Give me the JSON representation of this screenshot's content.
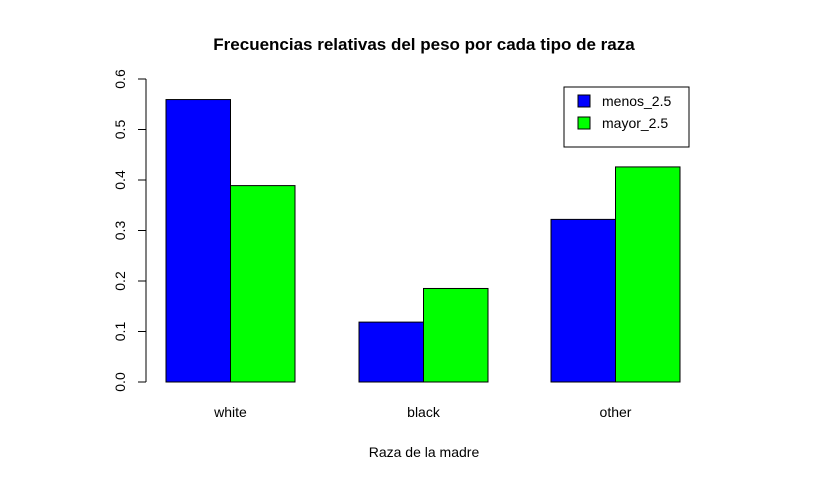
{
  "chart_data": {
    "type": "bar",
    "title": "Frecuencias relativas del peso por cada tipo de raza",
    "xlabel": "Raza de la madre",
    "ylabel": "",
    "categories": [
      "white",
      "black",
      "other"
    ],
    "series": [
      {
        "name": "menos_2.5",
        "color": "#0000FF",
        "values": [
          0.5593,
          0.1186,
          0.322
        ]
      },
      {
        "name": "mayor_2.5",
        "color": "#00FF00",
        "values": [
          0.3889,
          0.1852,
          0.4259
        ]
      }
    ],
    "ylim": [
      0,
      0.6
    ],
    "yticks": [
      "0.0",
      "0.1",
      "0.2",
      "0.3",
      "0.4",
      "0.5",
      "0.6"
    ],
    "grid": false,
    "legend_position": "top-right"
  }
}
